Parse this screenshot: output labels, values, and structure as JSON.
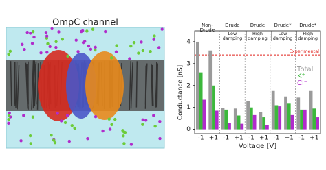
{
  "image": {
    "title": "OmpC channel"
  },
  "chart_data": {
    "type": "bar",
    "y_label": "Conductance [nS]",
    "x_label": "Voltage [V]",
    "categories": [
      "-1",
      "+1",
      "-1",
      "+1",
      "-1",
      "+1",
      "-1",
      "+1",
      "-1",
      "+1"
    ],
    "groups": [
      {
        "label": "Non-Drude"
      },
      {
        "label": "Drude",
        "sublabel": "Low damping"
      },
      {
        "label": "Drude",
        "sublabel": "High damping"
      },
      {
        "label": "Drude*",
        "sublabel": "Low damping"
      },
      {
        "label": "Drude*",
        "sublabel": "High damping"
      }
    ],
    "series": [
      {
        "name": "Total",
        "color": "#9a9a9a",
        "values": [
          4.0,
          3.6,
          0.97,
          0.95,
          1.3,
          0.8,
          1.75,
          1.5,
          1.45,
          1.75
        ]
      },
      {
        "name": "K⁺",
        "color": "#3cb83c",
        "values": [
          2.6,
          2.0,
          0.9,
          0.63,
          1.0,
          0.55,
          1.1,
          1.2,
          0.9,
          0.95
        ]
      },
      {
        "name": "Cl⁻",
        "color": "#b02ccb",
        "values": [
          1.35,
          0.85,
          0.3,
          0.25,
          0.65,
          0.2,
          1.05,
          0.65,
          0.9,
          0.55
        ]
      }
    ],
    "reference_line": {
      "label": "Experimental",
      "value": 3.4,
      "color": "#e0201b"
    },
    "ylim": [
      -0.2,
      4.5
    ],
    "yticks": [
      0,
      1,
      2,
      3,
      4
    ]
  }
}
